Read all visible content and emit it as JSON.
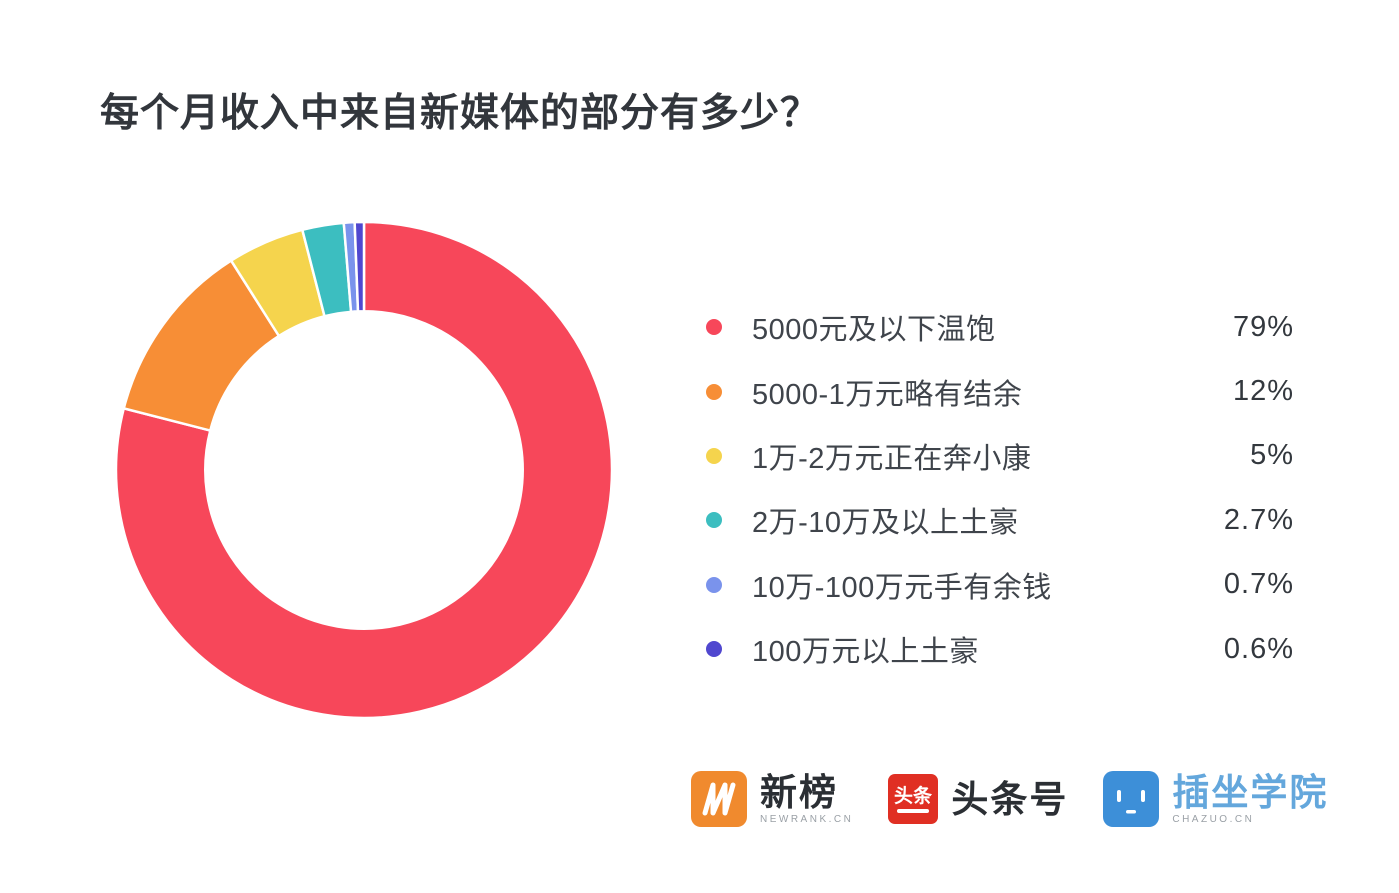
{
  "title": "每个月收入中来自新媒体的部分有多少？",
  "chart_data": {
    "type": "pie",
    "subtype": "donut",
    "title": "每个月收入中来自新媒体的部分有多少？",
    "categories": [
      "5000元及以下温饱",
      "5000-1万元略有结余",
      "1万-2万元正在奔小康",
      "2万-10万及以上土豪",
      "10万-100万元手有余钱",
      "100万元以上土豪"
    ],
    "values": [
      79,
      12,
      5,
      2.7,
      0.7,
      0.6
    ],
    "value_labels": [
      "79%",
      "12%",
      "5%",
      "2.7%",
      "0.7%",
      "0.6%"
    ],
    "colors": [
      "#F7475A",
      "#F78E36",
      "#F5D44D",
      "#3CBEC0",
      "#7A93EC",
      "#5047CF"
    ],
    "start_angle_deg": 0,
    "direction": "clockwise",
    "inner_radius_ratio": 0.64,
    "legend_position": "right",
    "slice_gap_color": "#ffffff"
  },
  "legend": {
    "items": [
      {
        "label": "5000元及以下温饱",
        "value_label": "79%",
        "color": "#F7475A"
      },
      {
        "label": "5000-1万元略有结余",
        "value_label": "12%",
        "color": "#F78E36"
      },
      {
        "label": "1万-2万元正在奔小康",
        "value_label": "5%",
        "color": "#F5D44D"
      },
      {
        "label": "2万-10万及以上土豪",
        "value_label": "2.7%",
        "color": "#3CBEC0"
      },
      {
        "label": "10万-100万元手有余钱",
        "value_label": "0.7%",
        "color": "#7A93EC"
      },
      {
        "label": "100万元以上土豪",
        "value_label": "0.6%",
        "color": "#5047CF"
      }
    ]
  },
  "footer": {
    "logos": [
      {
        "name": "新榜",
        "subtext": "NEWRANK.CN",
        "icon_text": "N",
        "badge_color": "#F08A2E"
      },
      {
        "name": "头条号",
        "subtext": "",
        "icon_text": "头条",
        "badge_color": "#E02F23"
      },
      {
        "name": "插坐学院",
        "subtext": "CHAZUO.CN",
        "icon_text": "",
        "badge_color": "#3D8FD8"
      }
    ]
  }
}
